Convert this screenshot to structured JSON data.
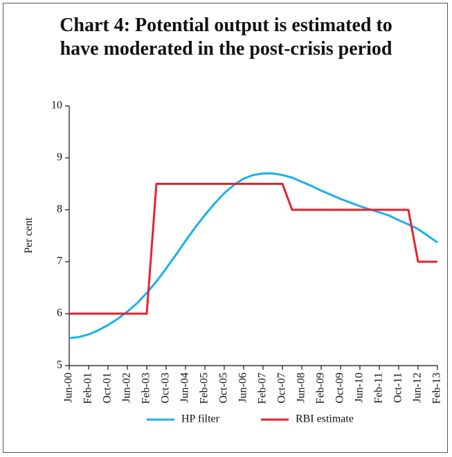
{
  "chart_data": {
    "type": "line",
    "title": "Chart 4: Potential output is estimated to have moderated in the post-crisis period",
    "y_label": "Per cent",
    "categories": [
      "Jun-00",
      null,
      "Feb-01",
      null,
      "Oct-01",
      null,
      "Jun-02",
      null,
      "Feb-03",
      null,
      "Oct-03",
      null,
      "Jun-04",
      null,
      "Feb-05",
      null,
      "Oct-05",
      null,
      "Jun-06",
      null,
      "Feb-07",
      null,
      "Oct-07",
      null,
      "Jun-08",
      null,
      "Feb-09",
      null,
      "Oct-09",
      null,
      "Jun-10",
      null,
      "Feb-11",
      null,
      "Oct-11",
      null,
      "Jun-12",
      null,
      "Feb-13"
    ],
    "series": [
      {
        "name": "HP filter",
        "color": "#1ab0ea",
        "values": [
          5.53,
          5.55,
          5.6,
          5.68,
          5.78,
          5.9,
          6.04,
          6.2,
          6.4,
          6.62,
          6.87,
          7.13,
          7.4,
          7.66,
          7.9,
          8.12,
          8.32,
          8.48,
          8.6,
          8.67,
          8.7,
          8.7,
          8.67,
          8.62,
          8.54,
          8.46,
          8.37,
          8.29,
          8.21,
          8.14,
          8.07,
          8.01,
          7.95,
          7.89,
          7.8,
          7.72,
          7.63,
          7.5,
          7.37
        ]
      },
      {
        "name": "RBI estimate",
        "color": "#e8212a",
        "values": [
          6,
          6,
          6,
          6,
          6,
          6,
          6,
          6,
          6,
          8.5,
          8.5,
          8.5,
          8.5,
          8.5,
          8.5,
          8.5,
          8.5,
          8.5,
          8.5,
          8.5,
          8.5,
          8.5,
          8.5,
          8,
          8,
          8,
          8,
          8,
          8,
          8,
          8,
          8,
          8,
          8,
          8,
          8,
          7,
          7,
          7
        ]
      }
    ],
    "ylim": [
      5,
      10
    ],
    "yticks": [
      5,
      6,
      7,
      8,
      9,
      10
    ],
    "grid": false,
    "legend": "bottom"
  }
}
